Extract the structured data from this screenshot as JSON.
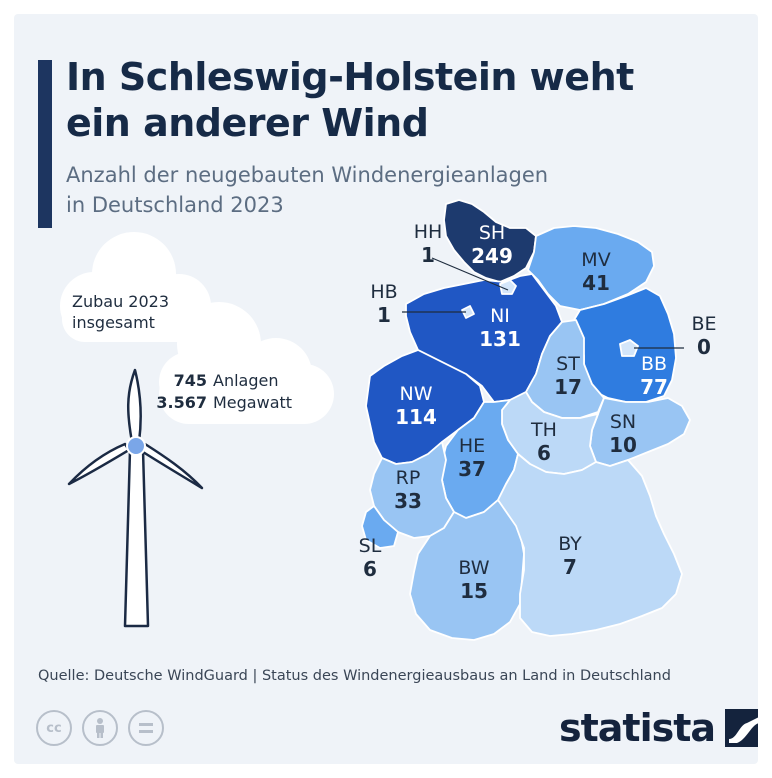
{
  "header": {
    "title_line1": "In Schleswig-Holstein weht",
    "title_line2": "ein anderer Wind",
    "subtitle_line1": "Anzahl der neugebauten Windenergieanlagen",
    "subtitle_line2": "in Deutschland 2023"
  },
  "summary": {
    "label_line1": "Zubau 2023",
    "label_line2": "insgesamt",
    "anlagen_value": "745",
    "anlagen_unit": "Anlagen",
    "megawatt_value": "3.567",
    "megawatt_unit": "Megawatt"
  },
  "regions": {
    "SH": {
      "name": "SH",
      "value": "249"
    },
    "HH": {
      "name": "HH",
      "value": "1"
    },
    "MV": {
      "name": "MV",
      "value": "41"
    },
    "HB": {
      "name": "HB",
      "value": "1"
    },
    "NI": {
      "name": "NI",
      "value": "131"
    },
    "BE": {
      "name": "BE",
      "value": "0"
    },
    "BB": {
      "name": "BB",
      "value": "77"
    },
    "ST": {
      "name": "ST",
      "value": "17"
    },
    "NW": {
      "name": "NW",
      "value": "114"
    },
    "SN": {
      "name": "SN",
      "value": "10"
    },
    "TH": {
      "name": "TH",
      "value": "6"
    },
    "HE": {
      "name": "HE",
      "value": "37"
    },
    "RP": {
      "name": "RP",
      "value": "33"
    },
    "SL": {
      "name": "SL",
      "value": "6"
    },
    "BY": {
      "name": "BY",
      "value": "7"
    },
    "BW": {
      "name": "BW",
      "value": "15"
    }
  },
  "colors": {
    "darkest": "#1d3a6e",
    "dark": "#2057c4",
    "medium_dark": "#2f7ce0",
    "medium": "#6aaaf0",
    "light": "#99c5f3",
    "lighter": "#bcd9f7",
    "lightest": "#d4e6fa"
  },
  "footer": {
    "source": "Quelle: Deutsche WindGuard | Status des Windenergieausbaus an Land in Deutschland",
    "brand": "statista",
    "license_icons": [
      "cc-icon",
      "person-icon",
      "equal-icon"
    ]
  }
}
